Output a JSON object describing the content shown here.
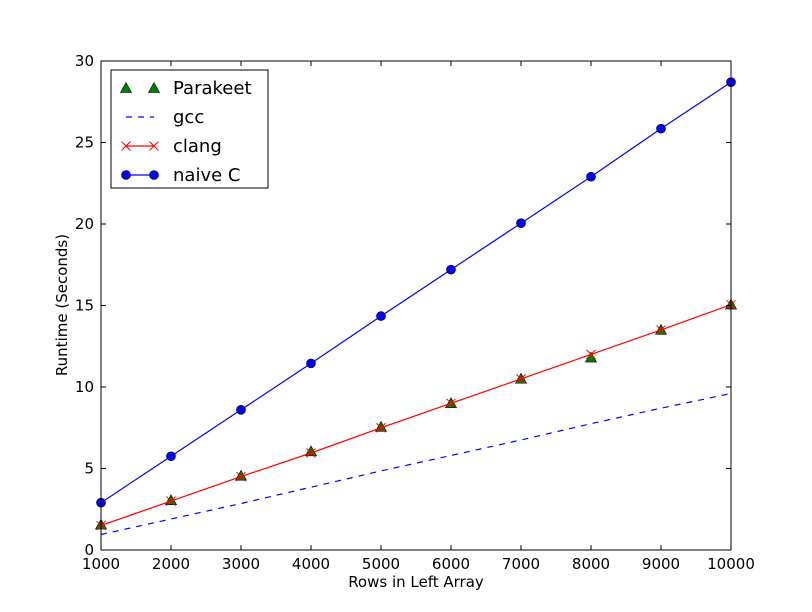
{
  "chart_data": {
    "type": "line",
    "xlabel": "Rows in Left Array",
    "ylabel": "Runtime (Seconds)",
    "xlim": [
      1000,
      10000
    ],
    "ylim": [
      0,
      30
    ],
    "xticks": [
      1000,
      2000,
      3000,
      4000,
      5000,
      6000,
      7000,
      8000,
      9000,
      10000
    ],
    "yticks": [
      0,
      5,
      10,
      15,
      20,
      25,
      30
    ],
    "grid": false,
    "legend_position": "top-left",
    "x": [
      1000,
      2000,
      3000,
      4000,
      5000,
      6000,
      7000,
      8000,
      9000,
      10000
    ],
    "series": [
      {
        "name": "Parakeet",
        "color": "#008000",
        "marker": "triangle",
        "line": "none",
        "values": [
          1.55,
          3.05,
          4.55,
          6.05,
          7.55,
          9.0,
          10.5,
          11.8,
          13.5,
          15.05
        ]
      },
      {
        "name": "gcc",
        "color": "#0000ff",
        "marker": "none",
        "line": "dashed",
        "values": [
          0.95,
          1.9,
          2.85,
          3.85,
          4.85,
          5.8,
          6.75,
          7.75,
          8.7,
          9.6
        ]
      },
      {
        "name": "clang",
        "color": "#ff0000",
        "marker": "x",
        "line": "solid",
        "values": [
          1.5,
          3.0,
          4.5,
          5.95,
          7.5,
          9.0,
          10.5,
          12.0,
          13.5,
          15.05
        ]
      },
      {
        "name": "naive C",
        "color": "#0000ff",
        "marker": "circle",
        "line": "solid",
        "values": [
          2.9,
          5.75,
          8.6,
          11.45,
          14.35,
          17.2,
          20.05,
          22.9,
          25.85,
          28.7
        ]
      }
    ]
  }
}
